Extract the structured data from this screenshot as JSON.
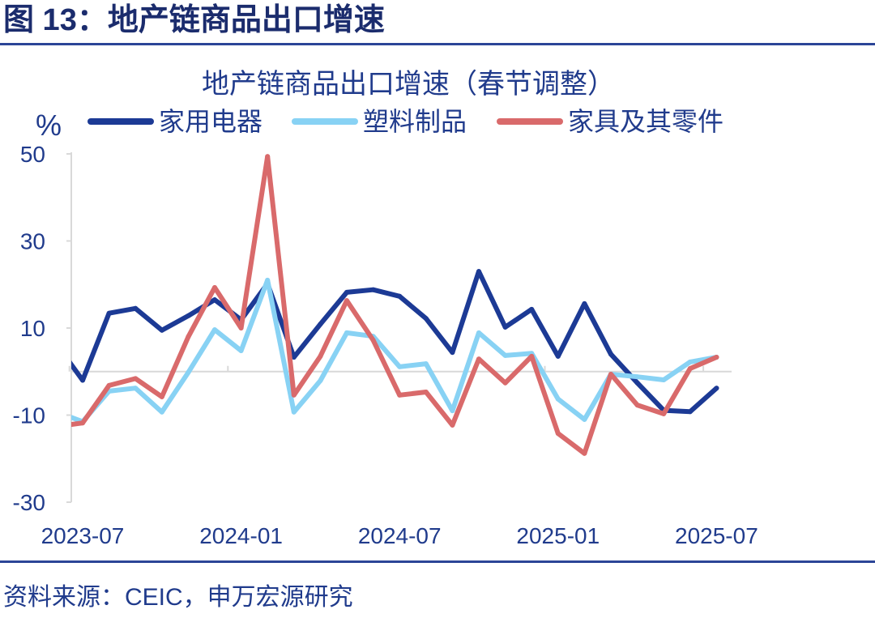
{
  "header": {
    "figure_title": "图 13：地产链商品出口增速"
  },
  "source": {
    "text": "资料来源：CEIC，申万宏源研究"
  },
  "theme": {
    "text_color": "#203b8c",
    "header_color": "#1b2c6d",
    "rule_color": "#2b4597",
    "axis_color": "#d9d9d9"
  },
  "chart_data": {
    "type": "line",
    "title": "地产链商品出口增速（春节调整）",
    "ylabel": "%",
    "ylim": [
      -30,
      50
    ],
    "y_ticks": [
      50,
      30,
      10,
      -10,
      -30
    ],
    "x_tick_labels": [
      "2023-07",
      "2024-01",
      "2024-07",
      "2025-01",
      "2025-07"
    ],
    "x": [
      "2023-06",
      "2023-07",
      "2023-08",
      "2023-09",
      "2023-10",
      "2023-11",
      "2023-12",
      "2024-01",
      "2024-02",
      "2024-03",
      "2024-04",
      "2024-05",
      "2024-06",
      "2024-07",
      "2024-08",
      "2024-09",
      "2024-10",
      "2024-11",
      "2024-12",
      "2025-01",
      "2025-02",
      "2025-03",
      "2025-04",
      "2025-05",
      "2025-06",
      "2025-07"
    ],
    "series": [
      {
        "name": "家用电器",
        "color": "#1c3a95",
        "values": [
          6.4,
          -2.0,
          13.4,
          14.5,
          9.5,
          12.8,
          16.5,
          11.9,
          20.2,
          3.3,
          10.9,
          18.2,
          18.8,
          17.3,
          12.2,
          4.4,
          23.0,
          10.2,
          14.3,
          3.5,
          15.6,
          4.0,
          -2.6,
          -8.9,
          -9.2,
          -3.8
        ]
      },
      {
        "name": "塑料制品",
        "color": "#88d2f4",
        "values": [
          -9.2,
          -11.5,
          -4.5,
          -3.8,
          -9.3,
          -0.2,
          9.6,
          4.8,
          21.0,
          -9.3,
          -2.1,
          8.9,
          8.1,
          1.1,
          1.8,
          -9.0,
          8.9,
          3.7,
          4.2,
          -6.3,
          -11.0,
          -0.6,
          -1.2,
          -1.9,
          2.2,
          3.3
        ]
      },
      {
        "name": "家具及其零件",
        "color": "#d96a6b",
        "values": [
          -12.6,
          -11.8,
          -3.2,
          -1.6,
          -5.8,
          8.0,
          19.3,
          10.0,
          49.4,
          -5.4,
          3.5,
          16.3,
          7.2,
          -5.4,
          -4.7,
          -12.3,
          2.9,
          -2.6,
          3.5,
          -14.2,
          -18.8,
          -0.6,
          -7.7,
          -9.7,
          0.7,
          3.3
        ]
      }
    ],
    "grid": false,
    "legend": "top"
  }
}
